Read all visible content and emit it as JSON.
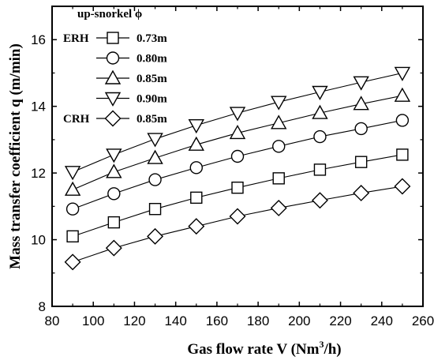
{
  "chart_data": {
    "type": "line",
    "xlabel": "Gas flow rate V (Nm",
    "xlabel_sup": "3",
    "xlabel_end": "/h)",
    "ylabel": "Mass transfer coefficient q (m/min)",
    "xlim": [
      80,
      260
    ],
    "ylim": [
      8,
      17
    ],
    "xticks": [
      80,
      100,
      120,
      140,
      160,
      180,
      200,
      220,
      240,
      260
    ],
    "yticks": [
      8,
      10,
      12,
      14,
      16
    ],
    "x": [
      90,
      110,
      130,
      150,
      170,
      190,
      210,
      230,
      250
    ],
    "legend_title": "up-snorkel ϕ",
    "legend_placement": "top-left",
    "grid": false,
    "series": [
      {
        "group": "ERH",
        "name": "0.73m",
        "marker": "square",
        "values": [
          10.1,
          10.52,
          10.92,
          11.26,
          11.56,
          11.84,
          12.1,
          12.33,
          12.55
        ]
      },
      {
        "group": "",
        "name": "0.80m",
        "marker": "circle",
        "values": [
          10.92,
          11.38,
          11.8,
          12.16,
          12.5,
          12.8,
          13.09,
          13.33,
          13.58
        ]
      },
      {
        "group": "",
        "name": "0.85m",
        "marker": "triangle-up",
        "values": [
          11.5,
          12.03,
          12.45,
          12.85,
          13.2,
          13.5,
          13.8,
          14.07,
          14.32
        ]
      },
      {
        "group": "",
        "name": "0.90m",
        "marker": "triangle-down",
        "values": [
          12.03,
          12.55,
          13.02,
          13.43,
          13.8,
          14.13,
          14.43,
          14.72,
          15.0
        ]
      },
      {
        "group": "CRH",
        "name": "0.85m",
        "marker": "diamond",
        "values": [
          9.33,
          9.75,
          10.1,
          10.4,
          10.7,
          10.95,
          11.18,
          11.4,
          11.6
        ]
      }
    ]
  }
}
